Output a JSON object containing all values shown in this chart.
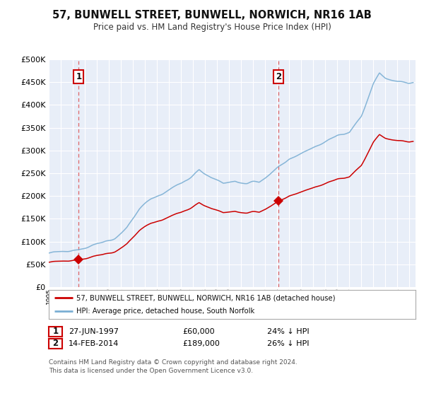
{
  "title": "57, BUNWELL STREET, BUNWELL, NORWICH, NR16 1AB",
  "subtitle": "Price paid vs. HM Land Registry's House Price Index (HPI)",
  "legend_property": "57, BUNWELL STREET, BUNWELL, NORWICH, NR16 1AB (detached house)",
  "legend_hpi": "HPI: Average price, detached house, South Norfolk",
  "annotation1_label": "1",
  "annotation1_date": "27-JUN-1997",
  "annotation1_price": "£60,000",
  "annotation1_hpi": "24% ↓ HPI",
  "annotation2_label": "2",
  "annotation2_date": "14-FEB-2014",
  "annotation2_price": "£189,000",
  "annotation2_hpi": "26% ↓ HPI",
  "footnote": "Contains HM Land Registry data © Crown copyright and database right 2024.\nThis data is licensed under the Open Government Licence v3.0.",
  "property_color": "#cc0000",
  "hpi_color": "#7bafd4",
  "background_color": "#e8eef8",
  "ylim": [
    0,
    500000
  ],
  "yticks": [
    0,
    50000,
    100000,
    150000,
    200000,
    250000,
    300000,
    350000,
    400000,
    450000,
    500000
  ],
  "sale1_year": 1997.49,
  "sale1_price": 60000,
  "sale2_year": 2014.12,
  "sale2_price": 189000,
  "xmin": 1995,
  "xmax": 2025.5
}
